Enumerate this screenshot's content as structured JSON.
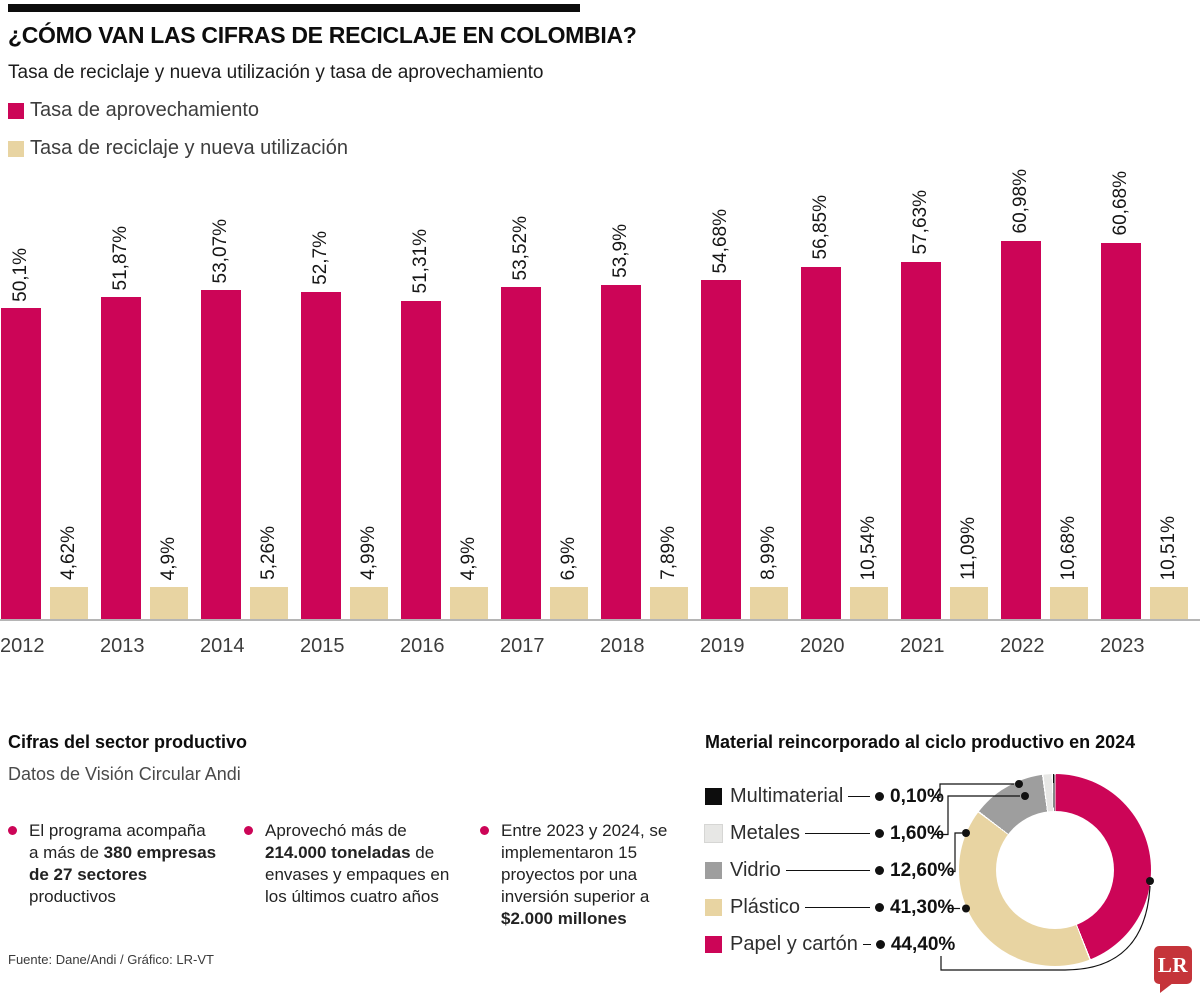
{
  "header": {
    "title": "¿CÓMO VAN LAS CIFRAS DE RECICLAJE EN COLOMBIA?",
    "subtitle": "Tasa de reciclaje y nueva utilización  y tasa de aprovechamiento"
  },
  "colors": {
    "magenta": "#cc0557",
    "tan": "#e8d4a2",
    "gray": "#9e9e9e",
    "light_gray": "#e7e7e5",
    "black": "#0d0d0d",
    "baseline_gray": "#b5b5b5",
    "lr_red": "#c5343a"
  },
  "chart_data": [
    {
      "type": "bar",
      "title": "Tasa de reciclaje y nueva utilización y tasa de aprovechamiento",
      "categories": [
        "2012",
        "2013",
        "2014",
        "2015",
        "2016",
        "2017",
        "2018",
        "2019",
        "2020",
        "2021",
        "2022",
        "2023"
      ],
      "series": [
        {
          "name": "Tasa de aprovechamiento",
          "color": "#cc0557",
          "values": [
            50.1,
            51.87,
            53.07,
            52.7,
            51.31,
            53.52,
            53.9,
            54.68,
            56.85,
            57.63,
            60.98,
            60.68
          ],
          "labels": [
            "50,1%",
            "51,87%",
            "53,07%",
            "52,7%",
            "51,31%",
            "53,52%",
            "53,9%",
            "54,68%",
            "56,85%",
            "57,63%",
            "60,98%",
            "60,68%"
          ]
        },
        {
          "name": "Tasa de reciclaje y nueva utilización",
          "color": "#e8d4a2",
          "values": [
            4.62,
            4.9,
            5.26,
            4.99,
            4.9,
            6.9,
            7.89,
            8.99,
            10.54,
            11.09,
            10.68,
            10.51
          ],
          "labels": [
            "4,62%",
            "4,9%",
            "5,26%",
            "4,99%",
            "4,9%",
            "6,9%",
            "7,89%",
            "8,99%",
            "10,54%",
            "11,09%",
            "10,68%",
            "10,51%"
          ]
        }
      ],
      "value_suffix": "%",
      "grid": false,
      "legend_position": "top-left",
      "bar_label_rotation": "vertical"
    },
    {
      "type": "pie",
      "donut": true,
      "title": "Material reincorporado al ciclo productivo en 2024",
      "slices": [
        {
          "label": "Multimaterial",
          "value": 0.1,
          "display": "0,10%",
          "color": "#0d0d0d"
        },
        {
          "label": "Metales",
          "value": 1.6,
          "display": "1,60%",
          "color": "#e7e7e5"
        },
        {
          "label": "Vidrio",
          "value": 12.6,
          "display": "12,60%",
          "color": "#9e9e9e"
        },
        {
          "label": "Plástico",
          "value": 41.3,
          "display": "41,30%",
          "color": "#e8d4a2"
        },
        {
          "label": "Papel y cartón",
          "value": 44.4,
          "display": "44,40%",
          "color": "#cc0557"
        }
      ],
      "clockwise_from_top": [
        "Papel y cartón",
        "Plástico",
        "Vidrio",
        "Metales",
        "Multimaterial"
      ],
      "legend_position": "left"
    }
  ],
  "productive": {
    "title": "Cifras del sector productivo",
    "subtitle": "Datos de Visión Circular Andi",
    "bullets": [
      {
        "segments": [
          {
            "t": "El programa acompaña a más de ",
            "b": false
          },
          {
            "t": "380 empresas de 27 sectores",
            "b": true
          },
          {
            "t": " productivos",
            "b": false
          }
        ]
      },
      {
        "segments": [
          {
            "t": "Aprovechó más de ",
            "b": false
          },
          {
            "t": "214.000 toneladas",
            "b": true
          },
          {
            "t": " de envases y empaques en los últimos cuatro años",
            "b": false
          }
        ]
      },
      {
        "segments": [
          {
            "t": "Entre 2023 y 2024, se implementaron 15 proyectos por una inversión superior a ",
            "b": false
          },
          {
            "t": "$2.000 millones",
            "b": true
          }
        ]
      }
    ]
  },
  "footer": {
    "source": "Fuente: Dane/Andi  / Gráfico: LR-VT",
    "logo": "LR"
  }
}
